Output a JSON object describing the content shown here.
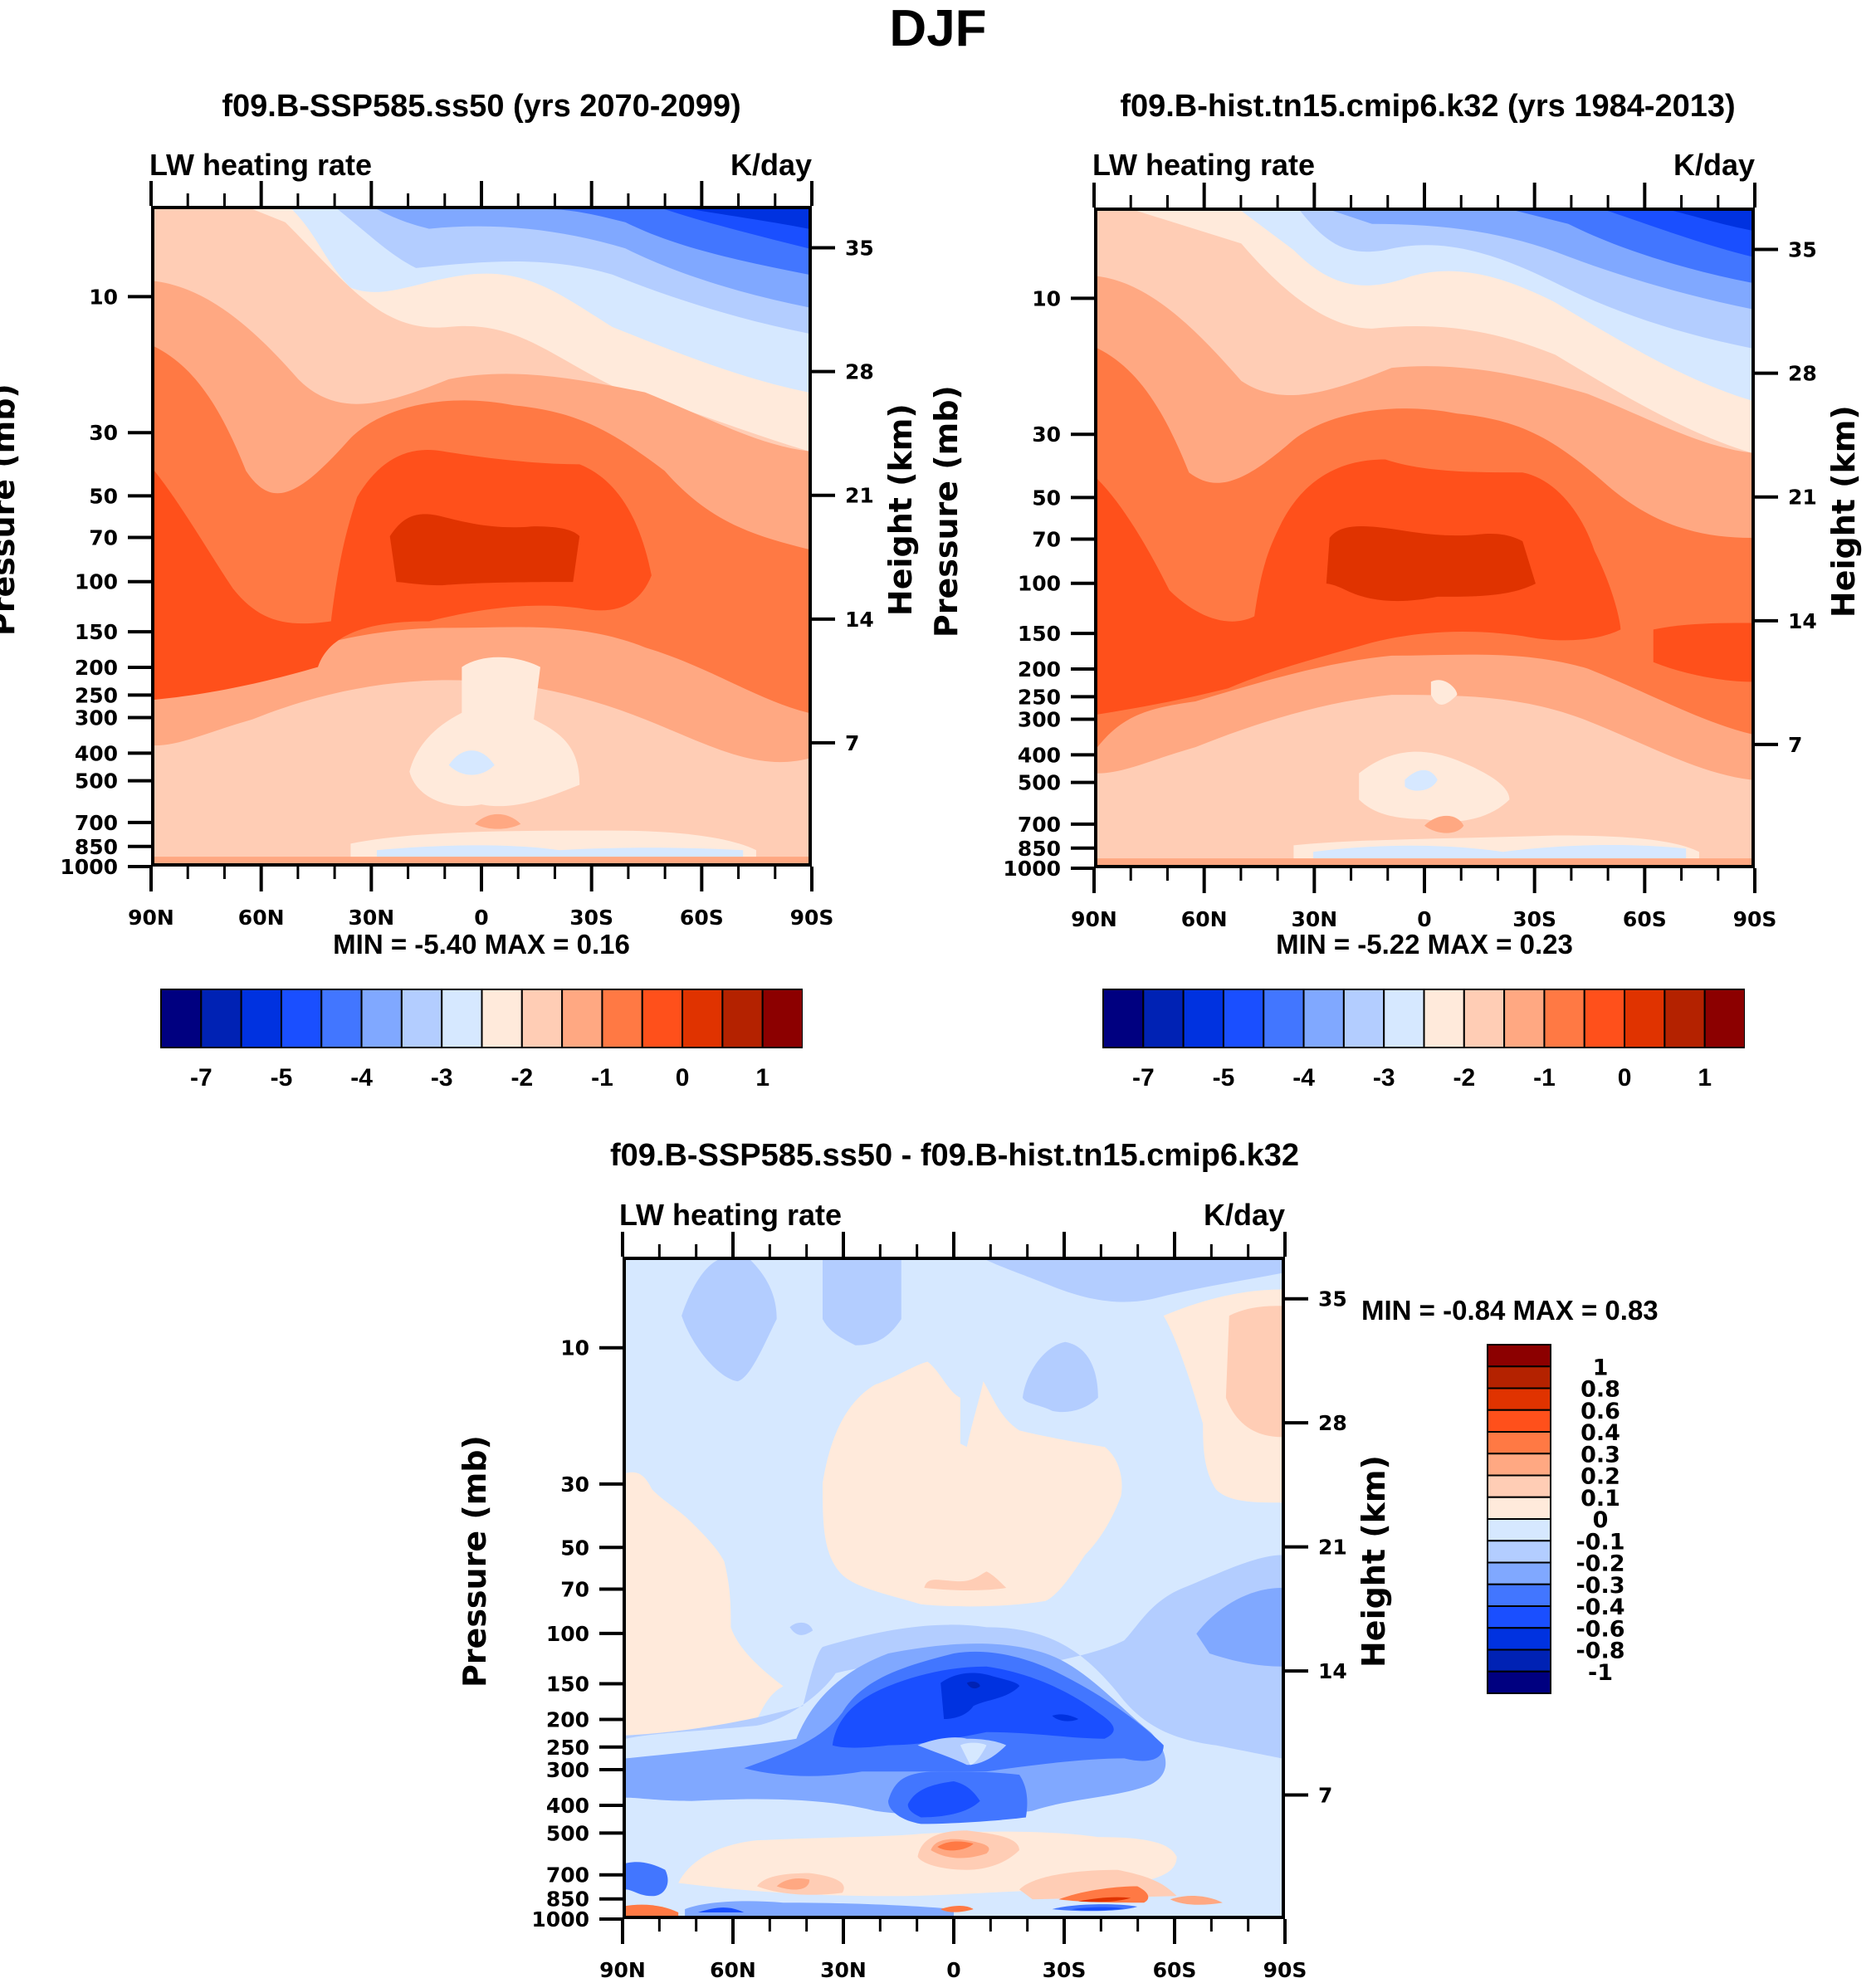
{
  "figure": {
    "title": "DJF"
  },
  "colors": {
    "palette": [
      "#000080",
      "#0022b4",
      "#0032e0",
      "#1a4fff",
      "#4276ff",
      "#80a8ff",
      "#b3cdff",
      "#d6e8ff",
      "#ffeadb",
      "#ffcdb5",
      "#ffa882",
      "#ff7944",
      "#ff501b",
      "#e03300",
      "#b42200",
      "#8c0000"
    ],
    "frame": "#000000"
  },
  "chart_data": [
    {
      "id": "panel-ssp585",
      "type": "heatmap",
      "subtype": "filled-contour latitude-pressure cross-section",
      "title": "f09.B-SSP585.ss50 (yrs 2070-2099)",
      "left_string": "LW heating rate",
      "right_string": "K/day",
      "xlabel": "",
      "ylabel": "Pressure (mb)",
      "ylabel_right": "Height (km)",
      "x_ticks": [
        "90N",
        "60N",
        "30N",
        "0",
        "30S",
        "60S",
        "90S"
      ],
      "x_range": [
        90,
        -90
      ],
      "y_ticks": [
        10,
        30,
        50,
        70,
        100,
        150,
        200,
        250,
        300,
        400,
        500,
        700,
        850,
        1000
      ],
      "y_range_mb": [
        1000,
        4.8
      ],
      "y_scale": "log",
      "y_right_ticks": [
        35,
        28,
        21,
        14,
        7
      ],
      "stats": "MIN =  -5.40  MAX =   0.16",
      "min": -5.4,
      "max": 0.16,
      "colorbar": {
        "orientation": "horizontal",
        "labels": [
          "-7",
          "-5",
          "-4",
          "-3",
          "-2",
          "-1",
          "0",
          "1"
        ],
        "n_colors": 16
      },
      "features": [
        {
          "description": "Warm maximum (dark red) centered near equator around 70-100 mb",
          "level": 13
        },
        {
          "description": "Strong cooling (blue) in upper stratosphere toward 90S, top right",
          "level": 2
        },
        {
          "description": "Weak cooling near surface over tropics and Southern Hemisphere",
          "level": 7
        }
      ]
    },
    {
      "id": "panel-hist",
      "type": "heatmap",
      "subtype": "filled-contour latitude-pressure cross-section",
      "title": "f09.B-hist.tn15.cmip6.k32 (yrs 1984-2013)",
      "left_string": "LW heating rate",
      "right_string": "K/day",
      "xlabel": "",
      "ylabel": "Pressure (mb)",
      "ylabel_right": "Height (km)",
      "x_ticks": [
        "90N",
        "60N",
        "30N",
        "0",
        "30S",
        "60S",
        "90S"
      ],
      "x_range": [
        90,
        -90
      ],
      "y_ticks": [
        10,
        30,
        50,
        70,
        100,
        150,
        200,
        250,
        300,
        400,
        500,
        700,
        850,
        1000
      ],
      "y_range_mb": [
        1000,
        4.8
      ],
      "y_scale": "log",
      "y_right_ticks": [
        35,
        28,
        21,
        14,
        7
      ],
      "stats": "MIN =  -5.22  MAX =   0.23",
      "min": -5.22,
      "max": 0.23,
      "colorbar": {
        "orientation": "horizontal",
        "labels": [
          "-7",
          "-5",
          "-4",
          "-3",
          "-2",
          "-1",
          "0",
          "1"
        ],
        "n_colors": 16
      }
    },
    {
      "id": "panel-diff",
      "type": "heatmap",
      "subtype": "filled-contour latitude-pressure cross-section (difference)",
      "title": "f09.B-SSP585.ss50 - f09.B-hist.tn15.cmip6.k32",
      "left_string": "LW heating rate",
      "right_string": "K/day",
      "xlabel": "",
      "ylabel": "Pressure (mb)",
      "ylabel_right": "Height (km)",
      "x_ticks": [
        "90N",
        "60N",
        "30N",
        "0",
        "30S",
        "60S",
        "90S"
      ],
      "x_range": [
        90,
        -90
      ],
      "y_ticks": [
        10,
        30,
        50,
        70,
        100,
        150,
        200,
        250,
        300,
        400,
        500,
        700,
        850,
        1000
      ],
      "y_range_mb": [
        1000,
        4.8
      ],
      "y_scale": "log",
      "y_right_ticks": [
        35,
        28,
        21,
        14,
        7
      ],
      "stats": "MIN =  -0.84  MAX =   0.83",
      "min": -0.84,
      "max": 0.83,
      "colorbar": {
        "orientation": "vertical",
        "labels": [
          "1",
          "0.8",
          "0.6",
          "0.4",
          "0.3",
          "0.2",
          "0.1",
          "0",
          "-0.1",
          "-0.2",
          "-0.3",
          "-0.4",
          "-0.6",
          "-0.8",
          "-1"
        ],
        "n_colors": 16
      },
      "features": [
        {
          "description": "Cooling maximum (-0.6 to -0.8) near equator around 150-200 mb",
          "level": 1
        },
        {
          "description": "Warming (0.3-0.6) near equator around 500-600 mb",
          "level": 12
        },
        {
          "description": "Warming near surface around 30S-60S",
          "level": 12
        }
      ]
    }
  ]
}
